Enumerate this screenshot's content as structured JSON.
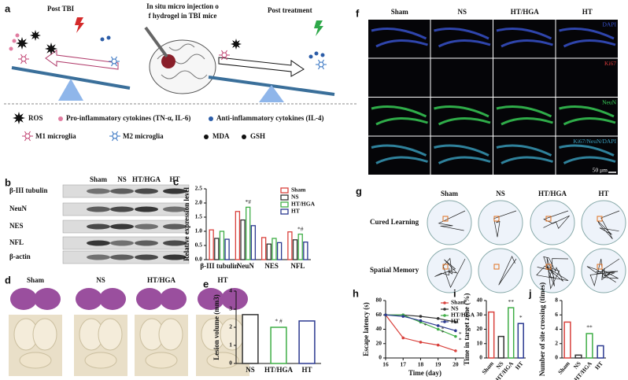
{
  "panels": {
    "a": {
      "letter": "a",
      "post_tbi": "Post TBI",
      "injection": [
        "In situ micro injection o",
        "f hydrogel in TBI mice"
      ],
      "post_treatment": "Post treatment",
      "legend": [
        "ROS",
        "Pro-inflammatory cytokines (TN-α, IL-6)",
        "Anti-inflammatory cytokines (IL-4)",
        "M1 microglia",
        "M2 microglia",
        "MDA",
        "GSH"
      ]
    },
    "b": {
      "letter": "b",
      "columns": [
        "Sham",
        "NS",
        "HT/HGA",
        "HT"
      ],
      "rows": [
        "β-III tubulin",
        "NeuN",
        "NES",
        "NFL",
        "β-actin"
      ]
    },
    "d": {
      "letter": "d",
      "columns": [
        "Sham",
        "NS",
        "HT/HGA",
        "HT"
      ]
    },
    "f": {
      "letter": "f",
      "columns": [
        "Sham",
        "NS",
        "HT/HGA",
        "HT"
      ],
      "stains": [
        "DAPI",
        "Ki67",
        "NeuN",
        "Ki67/NeuN/DAPI"
      ],
      "scale": "50 μm"
    },
    "g": {
      "letter": "g",
      "columns": [
        "Sham",
        "NS",
        "HT/HGA",
        "HT"
      ],
      "rows": [
        "Cured Learning",
        "Spatial Memory"
      ]
    }
  },
  "chart_data": [
    {
      "type": "bar",
      "panel_label": "c",
      "y_label": "Relative expression level",
      "categories": [
        "β-III tubulin",
        "NeuN",
        "NES",
        "NFL"
      ],
      "series": [
        {
          "name": "Sham",
          "color": "#d9413c",
          "values": [
            1.05,
            1.7,
            0.78,
            0.98
          ]
        },
        {
          "name": "NS",
          "color": "#333333",
          "values": [
            0.75,
            1.4,
            0.55,
            0.7
          ]
        },
        {
          "name": "HT/HGA",
          "color": "#3fae46",
          "values": [
            1.0,
            1.85,
            0.75,
            0.9
          ],
          "significance": [
            null,
            "*#",
            null,
            "*#"
          ]
        },
        {
          "name": "HT",
          "color": "#2b3990",
          "values": [
            0.72,
            1.2,
            0.6,
            0.62
          ]
        }
      ],
      "ylim": [
        0,
        2.5
      ],
      "yticks": [
        {
          "value": 0,
          "label": "0.0"
        },
        {
          "value": 0.5,
          "label": "0.5"
        },
        {
          "value": 1,
          "label": "1.0"
        },
        {
          "value": 1.5,
          "label": "1.5"
        },
        {
          "value": 2,
          "label": "2.0"
        },
        {
          "value": 2.5,
          "label": "2.5"
        }
      ],
      "legend": "upper right"
    },
    {
      "type": "bar",
      "panel_label": "e",
      "y_label": "Lesion volume (mm3)",
      "categories": [
        "NS",
        "HT/HGA",
        "HT"
      ],
      "values": [
        2.7,
        2.0,
        2.35
      ],
      "colors": [
        "#333333",
        "#3fae46",
        "#2b3990"
      ],
      "significance": [
        null,
        "* #",
        null
      ],
      "ylim": [
        0,
        4
      ],
      "yticks": [
        0,
        1,
        2,
        3,
        4
      ]
    },
    {
      "type": "line",
      "panel_label": "h",
      "x_label": "Time (day)",
      "y_label": "Escape latency (s)",
      "x": [
        16,
        17,
        18,
        19,
        20
      ],
      "xlim": [
        16,
        20.5
      ],
      "xticks": [
        16,
        17,
        18,
        19,
        20
      ],
      "ylim": [
        0,
        80
      ],
      "yticks": [
        0,
        20,
        40,
        60,
        80
      ],
      "legend": "upper right",
      "series": [
        {
          "name": "Sham",
          "color": "#d9413c",
          "values": [
            60,
            28,
            22,
            18,
            10
          ]
        },
        {
          "name": "NS",
          "color": "#333333",
          "values": [
            60,
            60,
            58,
            55,
            50
          ]
        },
        {
          "name": "HT/HGA",
          "color": "#3fae46",
          "values": [
            60,
            60,
            50,
            40,
            30
          ],
          "significance": [
            null,
            null,
            "*",
            "*",
            "*"
          ]
        },
        {
          "name": "HT",
          "color": "#2b3990",
          "values": [
            60,
            58,
            52,
            45,
            38
          ],
          "significance": [
            null,
            null,
            null,
            "*",
            "*"
          ]
        }
      ]
    },
    {
      "type": "bar",
      "panel_label": "i",
      "y_label": "Time in target zone (%)",
      "categories": [
        "Sham",
        "NS",
        "HT/HGA",
        "HT"
      ],
      "values": [
        32,
        15,
        35,
        24
      ],
      "colors": [
        "#d9413c",
        "#333333",
        "#3fae46",
        "#2b3990"
      ],
      "significance": [
        null,
        null,
        "**",
        "*"
      ],
      "ylim": [
        0,
        40
      ],
      "yticks": [
        0,
        10,
        20,
        30,
        40
      ]
    },
    {
      "type": "bar",
      "panel_label": "j",
      "y_label": "Number of site crossing (times)",
      "categories": [
        "Sham",
        "NS",
        "HT/HGA",
        "HT"
      ],
      "values": [
        5,
        0.4,
        3.4,
        1.7
      ],
      "colors": [
        "#d9413c",
        "#333333",
        "#3fae46",
        "#2b3990"
      ],
      "significance": [
        null,
        null,
        "**",
        null
      ],
      "ylim": [
        0,
        8
      ],
      "yticks": [
        0,
        2,
        4,
        6,
        8
      ]
    }
  ]
}
